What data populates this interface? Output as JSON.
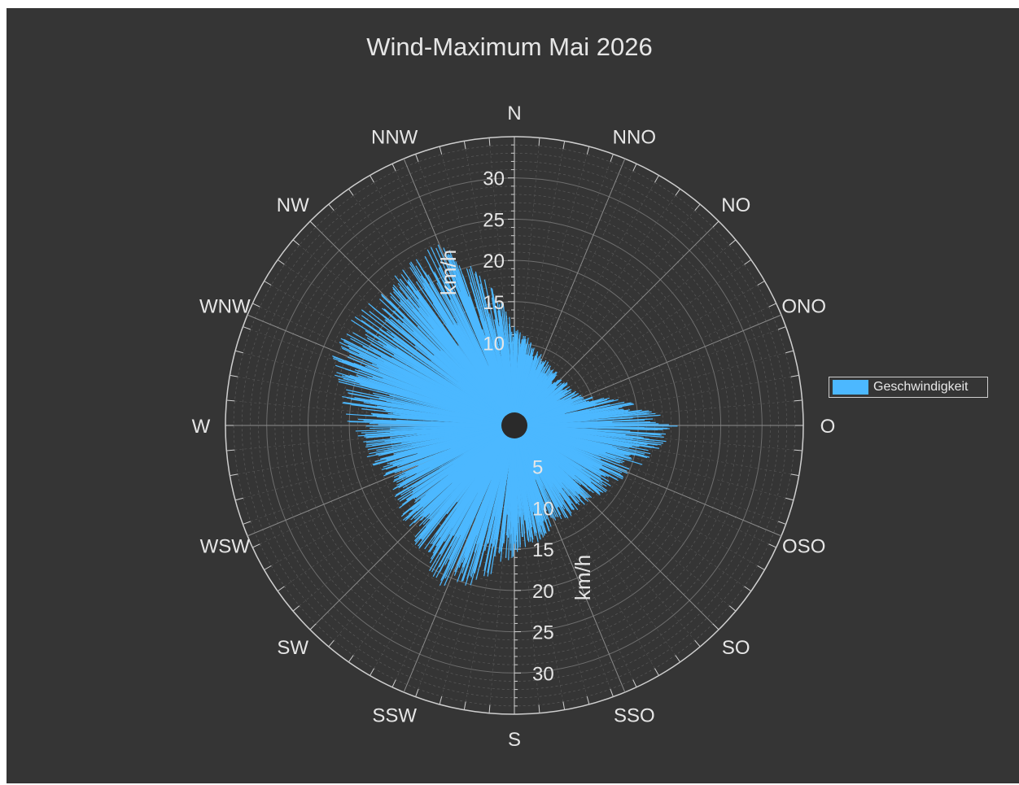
{
  "chart_data": {
    "type": "polar-bar",
    "title": "Wind-Maximum Mai 2026",
    "radial_unit_label": "km/h",
    "radial_range": [
      0,
      35
    ],
    "radial_ticks": [
      10,
      15,
      20,
      25,
      30
    ],
    "radial_ticks_lower": [
      5,
      10,
      15,
      20,
      25,
      30
    ],
    "direction_labels": [
      "N",
      "NNO",
      "NO",
      "ONO",
      "O",
      "OSO",
      "SO",
      "SSO",
      "S",
      "SSW",
      "SW",
      "WSW",
      "W",
      "WNW",
      "NW",
      "NNW"
    ],
    "series": [
      {
        "name": "Geschwindigkeit",
        "color": "#4cb8ff",
        "envelope_deg": [
          0,
          22.5,
          45,
          67.5,
          90,
          112.5,
          135,
          157.5,
          180,
          202.5,
          225,
          247.5,
          270,
          292.5,
          315,
          337.5
        ],
        "envelope_max_kmh": [
          12,
          9,
          8,
          9,
          20,
          15,
          13,
          13,
          16,
          22,
          18,
          17,
          20,
          24,
          23,
          24
        ]
      }
    ],
    "grid": true,
    "legend_position": "right"
  },
  "colors": {
    "background": "#353535",
    "grid": "#8a8a8a",
    "text": "#e6e6e6",
    "bars": "#4cb8ff"
  }
}
